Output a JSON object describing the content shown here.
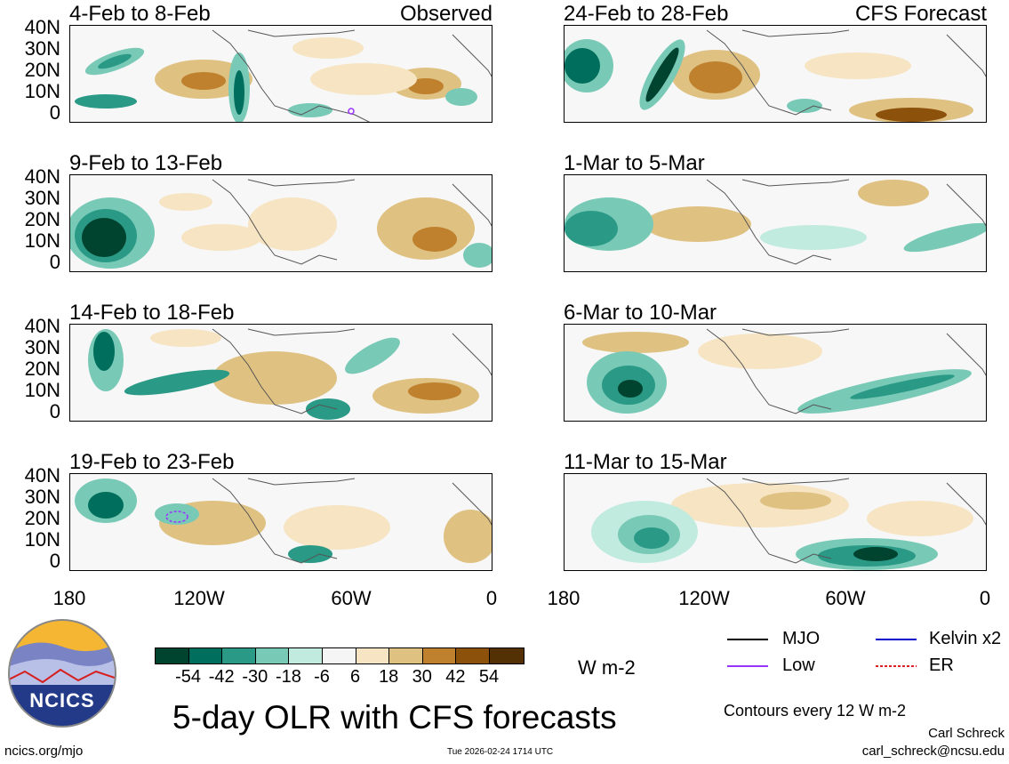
{
  "header": {
    "observed": "Observed",
    "forecast": "CFS Forecast"
  },
  "panels": {
    "obs": [
      "4-Feb to 8-Feb",
      "9-Feb to 13-Feb",
      "14-Feb to 18-Feb",
      "19-Feb to 23-Feb"
    ],
    "fcst": [
      "24-Feb to 28-Feb",
      "1-Mar to 5-Mar",
      "6-Mar to 10-Mar",
      "11-Mar to 15-Mar"
    ]
  },
  "axes": {
    "lat": [
      "40N",
      "30N",
      "20N",
      "10N",
      "0"
    ],
    "lon": [
      "180",
      "120W",
      "60W",
      "0"
    ]
  },
  "colorbar": {
    "colors": [
      "#00432f",
      "#006e5c",
      "#2a9a87",
      "#79c9b7",
      "#c2ebdf",
      "#f5f5f5",
      "#f6e4c2",
      "#dfc182",
      "#bf812d",
      "#8c510a",
      "#543005"
    ],
    "ticks": [
      "-54",
      "-42",
      "-30",
      "-18",
      "-6",
      "6",
      "18",
      "30",
      "42",
      "54"
    ],
    "units": "W m-2"
  },
  "title": "5-day OLR with CFS forecasts",
  "legend": {
    "mjo": "MJO",
    "kelvin": "Kelvin x2",
    "low": "Low",
    "er": "ER",
    "mjo_color": "#000000",
    "kelvin_color": "#0000cc",
    "low_color": "#9933ff",
    "er_color": "#dd2222",
    "contours": "Contours every 12 W m-2"
  },
  "logo": {
    "text": "NCICS"
  },
  "footer": {
    "site": "ncics.org/mjo",
    "timestamp": "Tue 2026-02-24 1714 UTC",
    "author": "Carl Schreck",
    "email": "carl_schreck@ncsu.edu"
  }
}
